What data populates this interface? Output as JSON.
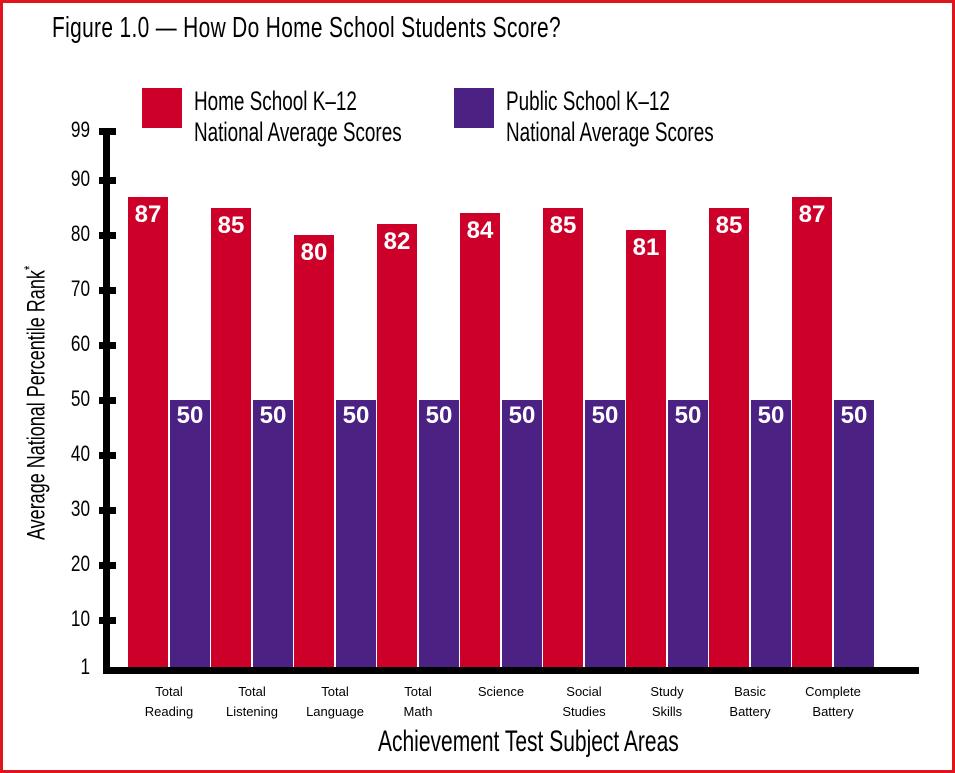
{
  "chart_data": {
    "type": "bar",
    "title": "Figure 1.0 — How Do Home School Students Score?",
    "xlabel": "Achievement Test Subject Areas",
    "ylabel": "Average National Percentile Rank",
    "ylabel_footnote_mark": "*",
    "ylim": [
      1,
      99
    ],
    "yticks": [
      1,
      10,
      20,
      30,
      40,
      50,
      60,
      70,
      80,
      90,
      99
    ],
    "grid": false,
    "legend_position": "top",
    "categories": [
      [
        "Total",
        "Reading"
      ],
      [
        "Total",
        "Listening"
      ],
      [
        "Total",
        "Language"
      ],
      [
        "Total",
        "Math"
      ],
      [
        "Science",
        ""
      ],
      [
        "Social",
        "Studies"
      ],
      [
        "Study",
        "Skills"
      ],
      [
        "Basic",
        "Battery"
      ],
      [
        "Complete",
        "Battery"
      ]
    ],
    "series": [
      {
        "name": "Home School K–12 National Average Scores",
        "legend_line1": "Home School K–12",
        "legend_line2": "National Average Scores",
        "color": "#cc0029",
        "values": [
          87,
          85,
          80,
          82,
          84,
          85,
          81,
          85,
          87
        ]
      },
      {
        "name": "Public School K–12 National Average Scores",
        "legend_line1": "Public School K–12",
        "legend_line2": "National Average Scores",
        "color": "#4b2283",
        "values": [
          50,
          50,
          50,
          50,
          50,
          50,
          50,
          50,
          50
        ]
      }
    ]
  },
  "frame_color": "#e0151b"
}
